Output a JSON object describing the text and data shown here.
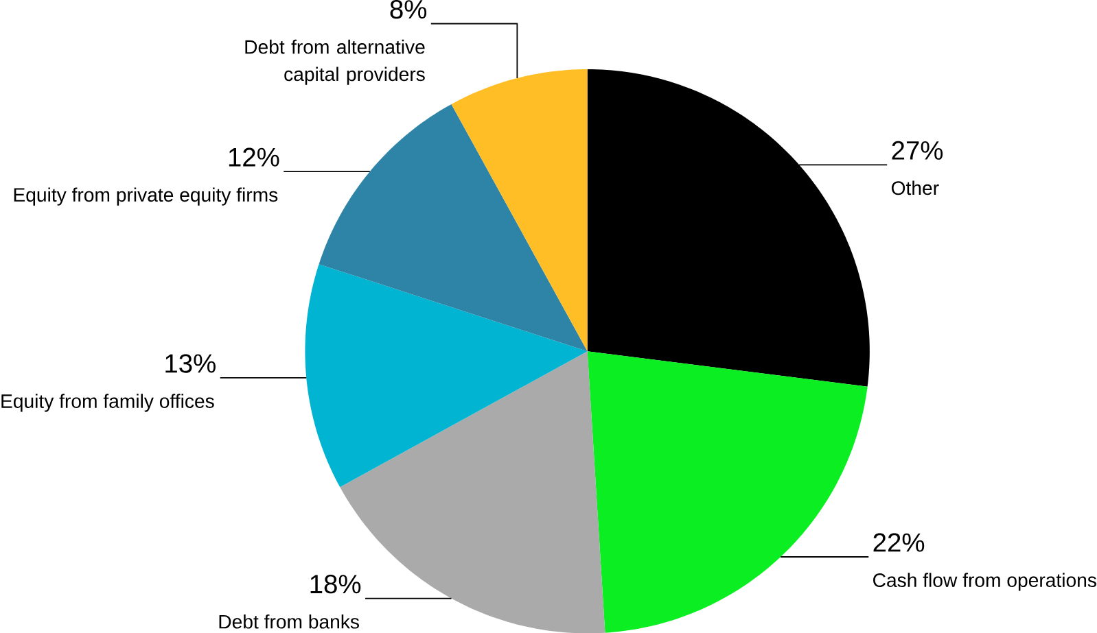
{
  "chart_data": {
    "type": "pie",
    "categories": [
      "Other",
      "Cash flow from operations",
      "Debt from banks",
      "Equity from family offices",
      "Equity from private equity firms",
      "Debt from alternative capital providers"
    ],
    "values": [
      27,
      22,
      18,
      13,
      12,
      8
    ],
    "value_labels": [
      "27%",
      "22%",
      "18%",
      "13%",
      "12%",
      "8%"
    ],
    "colors": [
      "#000000",
      "#0aee22",
      "#aaaaaa",
      "#00b4d2",
      "#2e84a6",
      "#ffbe26"
    ]
  }
}
